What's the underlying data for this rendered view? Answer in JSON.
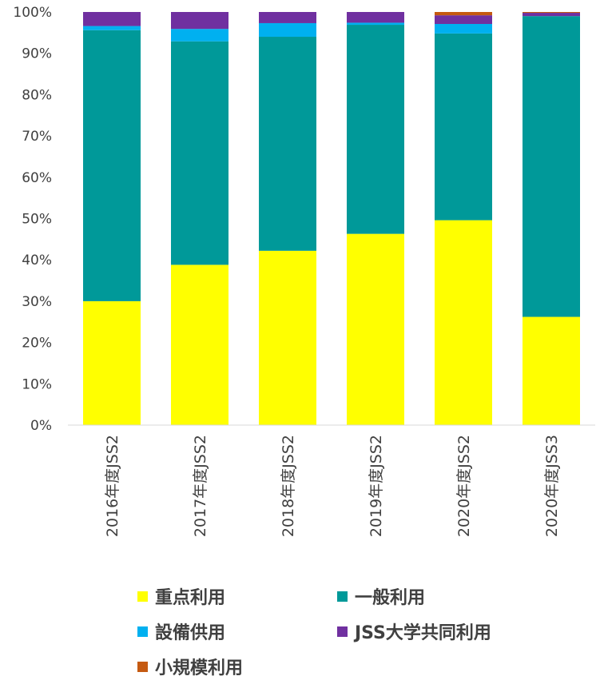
{
  "chart_data": {
    "type": "bar",
    "stacked": true,
    "percent_stacked": true,
    "categories": [
      "2016年度JSS2",
      "2017年度JSS2",
      "2018年度JSS2",
      "2019年度JSS2",
      "2020年度JSS2",
      "2020年度JSS3"
    ],
    "series": [
      {
        "name": "重点利用",
        "color": "#FFFF00",
        "values": [
          30.0,
          38.8,
          42.2,
          46.3,
          49.6,
          26.2
        ]
      },
      {
        "name": "一般利用",
        "color": "#009999",
        "values": [
          65.6,
          54.1,
          51.8,
          50.6,
          45.2,
          72.8
        ]
      },
      {
        "name": "設備供用",
        "color": "#00B0F0",
        "values": [
          1.0,
          3.0,
          3.3,
          0.5,
          2.3,
          0.0
        ]
      },
      {
        "name": "JSS大学共同利用",
        "color": "#7030A0",
        "values": [
          3.4,
          4.1,
          2.7,
          2.6,
          2.1,
          0.8
        ]
      },
      {
        "name": "小規模利用",
        "color": "#C55A11",
        "values": [
          0.0,
          0.0,
          0.0,
          0.0,
          0.8,
          0.2
        ]
      }
    ],
    "y_ticks": [
      "0%",
      "10%",
      "20%",
      "30%",
      "40%",
      "50%",
      "60%",
      "70%",
      "80%",
      "90%",
      "100%"
    ],
    "ylim": [
      0,
      100
    ],
    "grid": false,
    "legend_position": "bottom",
    "title": "",
    "xlabel": "",
    "ylabel": ""
  }
}
